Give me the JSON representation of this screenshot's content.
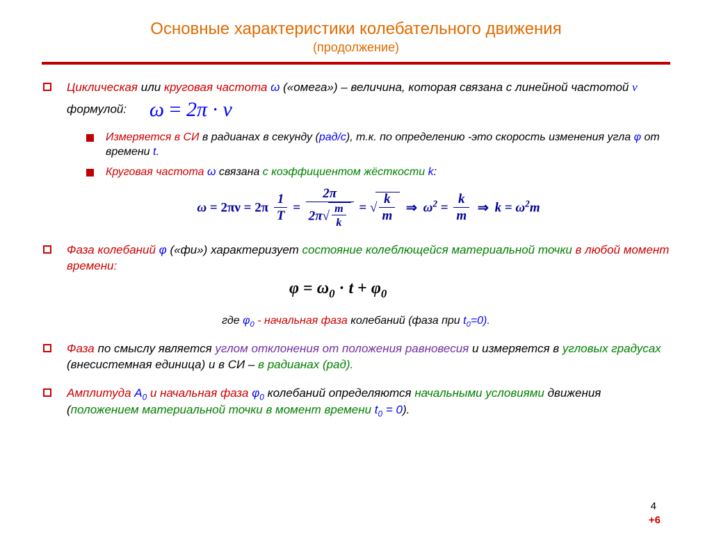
{
  "colors": {
    "orange": "#e06a00",
    "red": "#cc0000",
    "blue": "#0000ff",
    "darkblue": "#000099",
    "green": "#008000",
    "black": "#000000",
    "purple": "#7030a0",
    "hr": "#c00000",
    "inner_bullet": "#c00000"
  },
  "title": "Основные характеристики колебательного движения",
  "subtitle": "(продолжение)",
  "b1": {
    "seg1": "Циклическая",
    "seg2": " или ",
    "seg3": "круговая частота ",
    "seg4": "ω",
    "seg5": " («омега») – величина, которая связана с линейной частотой ",
    "seg6": "ν",
    "seg7": " формулой:",
    "formula_lhs": "ω",
    "formula_eq": " = ",
    "formula_rhs": "2π · ν"
  },
  "b1a": {
    "seg1": "Измеряется в СИ",
    "seg2": " в радианах в секунду (",
    "seg3": "рад/с",
    "seg4": "), т.к. по определению  -это скорость изменения угла ",
    "seg5": "φ",
    "seg6": " от времени ",
    "seg7": "t",
    "seg8": "."
  },
  "b1b": {
    "seg1": "Круговая частота ",
    "seg2": "ω",
    "seg3": " связана ",
    "seg4": "с коэффициентом жёсткости ",
    "seg5": "k",
    "seg6": ":"
  },
  "formula_long": {
    "w": "ω",
    "eq1": " = 2πν = 2π ",
    "one": "1",
    "T": "T",
    "eq2": " = ",
    "twopi_top": "2π",
    "twopi_bot": "2π",
    "m": "m",
    "k": "k",
    "eq3": " = ",
    "rad": "√",
    "arrow": " ⇒ ",
    "w2": "ω",
    "sq": "2",
    "eq4": " = ",
    "eq5": " ⇒ ",
    "k2": "k",
    "eq6": " = ",
    "wm": "ω",
    "m2": "m"
  },
  "b2": {
    "seg1": "Фаза колебаний ",
    "seg2": "φ",
    "seg3": " («фи»)",
    "seg4": " характеризует ",
    "seg5": "состояние колеблющейся материальной точки",
    "seg6": " в любой момент времени:"
  },
  "formula_phase": {
    "phi": "φ",
    "eq": " = ",
    "w0": "ω",
    "sub0": "0",
    "dot": " · ",
    "t": "t",
    "plus": " + ",
    "phi0": "φ",
    "sub0b": "0"
  },
  "note": {
    "seg1": "где ",
    "seg2": "φ",
    "seg3": "0",
    "seg4": " - начальная фаза",
    "seg5": " колебаний (фаза при ",
    "seg6": "t",
    "seg7": "0",
    "seg8": "=0).",
    "seg_mid": ""
  },
  "b3": {
    "seg1": "Фаза",
    "seg2": " по смыслу является ",
    "seg3": "углом отклонения от положения равновесия",
    "seg4": " и измеряется в ",
    "seg5": "угловых градусах",
    "seg6": " (внесистемная единица) и в СИ – ",
    "seg7": "в радианах (рад).",
    "seg8": ""
  },
  "b4": {
    "seg1": "Амплитуда ",
    "seg2": "А",
    "seg3": "0",
    "seg4": " и начальная фаза ",
    "seg5": "φ",
    "seg6": "0",
    "seg7": " колебаний определяются ",
    "seg8": "начальными условиями",
    "seg9": " движения (",
    "seg10": "положением материальной точки в момент времени ",
    "seg11": "t",
    "seg12": "0",
    "seg13": " = 0",
    "seg14": ")."
  },
  "pagenum": "4",
  "plus": "+6"
}
